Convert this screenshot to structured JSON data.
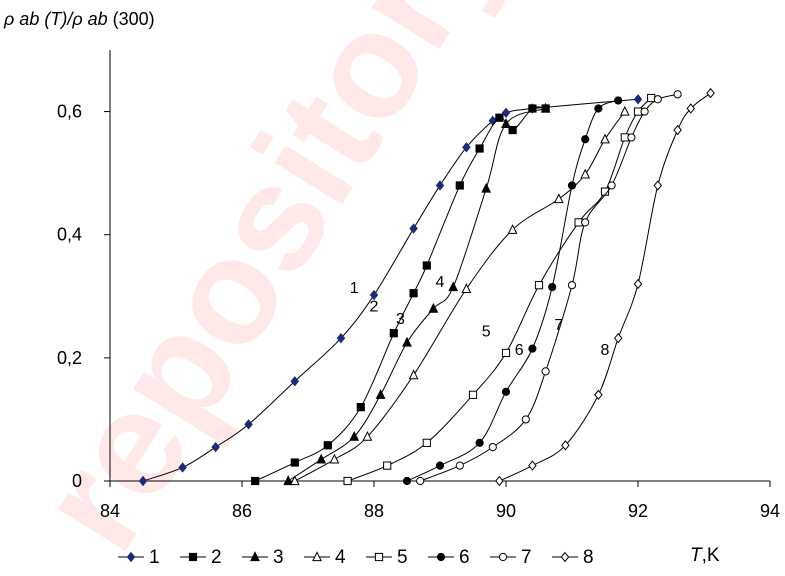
{
  "watermark": "repository.k",
  "chart_data": {
    "type": "scatter",
    "ylabel_parts": [
      "ρ ab (T)/ρ ab",
      "(300)"
    ],
    "xlabel_parts": [
      "T",
      ",K"
    ],
    "xlim": [
      84,
      94
    ],
    "ylim": [
      0,
      0.7
    ],
    "xticks": [
      84,
      86,
      88,
      90,
      92,
      94
    ],
    "xtick_labels": [
      "84",
      "86",
      "88",
      "90",
      "92",
      "94"
    ],
    "yticks": [
      0,
      0.2,
      0.4,
      0.6
    ],
    "ytick_labels": [
      "0",
      "0,2",
      "0,4",
      "0,6"
    ],
    "legend_position": "bottom",
    "series": [
      {
        "name": "1",
        "marker": "diamond-filled",
        "color": "#1f2a7a",
        "x": [
          84.5,
          85.1,
          85.6,
          86.1,
          86.8,
          87.5,
          88.0,
          88.6,
          89.0,
          89.4,
          89.8,
          90.0,
          90.4,
          92.0
        ],
        "y": [
          0.0,
          0.022,
          0.055,
          0.092,
          0.162,
          0.232,
          0.302,
          0.41,
          0.48,
          0.542,
          0.585,
          0.598,
          0.605,
          0.62
        ]
      },
      {
        "name": "2",
        "marker": "square-filled",
        "color": "#000000",
        "x": [
          86.2,
          86.8,
          87.3,
          87.8,
          88.3,
          88.6,
          88.8,
          89.3,
          89.6,
          89.9,
          90.1,
          90.4,
          90.6
        ],
        "y": [
          0.0,
          0.03,
          0.058,
          0.12,
          0.24,
          0.305,
          0.35,
          0.48,
          0.54,
          0.59,
          0.57,
          0.605,
          0.605
        ]
      },
      {
        "name": "3",
        "marker": "triangle-filled",
        "color": "#000000",
        "x": [
          86.7,
          87.2,
          87.7,
          88.1,
          88.5,
          88.9,
          89.2,
          89.7,
          90.0,
          90.6
        ],
        "y": [
          0.0,
          0.035,
          0.072,
          0.14,
          0.225,
          0.28,
          0.315,
          0.475,
          0.58,
          0.605
        ]
      },
      {
        "name": "4",
        "marker": "triangle-open",
        "color": "#000000",
        "x": [
          86.8,
          87.4,
          87.9,
          88.6,
          89.4,
          90.1,
          90.8,
          91.2,
          91.5,
          91.8
        ],
        "y": [
          0.0,
          0.035,
          0.072,
          0.172,
          0.312,
          0.408,
          0.458,
          0.498,
          0.555,
          0.6
        ]
      },
      {
        "name": "5",
        "marker": "square-open",
        "color": "#000000",
        "x": [
          87.6,
          88.2,
          88.8,
          89.5,
          90.0,
          90.5,
          91.1,
          91.5,
          91.8,
          92.0,
          92.2
        ],
        "y": [
          0.0,
          0.025,
          0.062,
          0.14,
          0.208,
          0.318,
          0.42,
          0.47,
          0.558,
          0.6,
          0.622
        ]
      },
      {
        "name": "6",
        "marker": "circle-filled",
        "color": "#000000",
        "x": [
          88.5,
          89.0,
          89.6,
          90.0,
          90.4,
          90.7,
          91.0,
          91.2,
          91.4,
          91.7
        ],
        "y": [
          0.0,
          0.025,
          0.062,
          0.145,
          0.215,
          0.315,
          0.48,
          0.555,
          0.605,
          0.618
        ]
      },
      {
        "name": "7",
        "marker": "circle-open",
        "color": "#000000",
        "x": [
          88.7,
          89.3,
          89.8,
          90.3,
          90.6,
          91.0,
          91.2,
          91.6,
          91.9,
          92.1,
          92.3,
          92.6
        ],
        "y": [
          0.0,
          0.025,
          0.055,
          0.1,
          0.178,
          0.318,
          0.42,
          0.48,
          0.558,
          0.6,
          0.62,
          0.628
        ]
      },
      {
        "name": "8",
        "marker": "diamond-open",
        "color": "#000000",
        "x": [
          89.9,
          90.4,
          90.9,
          91.4,
          91.7,
          92.0,
          92.3,
          92.6,
          92.8,
          93.1
        ],
        "y": [
          0.0,
          0.025,
          0.058,
          0.14,
          0.232,
          0.32,
          0.48,
          0.57,
          0.605,
          0.63
        ]
      }
    ],
    "curve_labels": [
      {
        "text": "1",
        "x": 87.7,
        "y": 0.305
      },
      {
        "text": "2",
        "x": 88.0,
        "y": 0.275
      },
      {
        "text": "3",
        "x": 88.4,
        "y": 0.255
      },
      {
        "text": "4",
        "x": 89.0,
        "y": 0.315
      },
      {
        "text": "5",
        "x": 89.7,
        "y": 0.235
      },
      {
        "text": "6",
        "x": 90.2,
        "y": 0.205
      },
      {
        "text": "7",
        "x": 90.8,
        "y": 0.245
      },
      {
        "text": "8",
        "x": 91.5,
        "y": 0.205
      },
      {
        "text": "4",
        "x": 89.55,
        "y": 0.54
      },
      {
        "text": "4",
        "x": 89.45,
        "y": 0.318
      }
    ]
  }
}
